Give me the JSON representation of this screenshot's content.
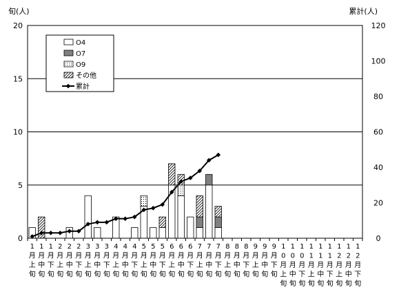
{
  "chart_data": {
    "type": "bar",
    "stacked": true,
    "left_axis_label": "旬(人)",
    "right_axis_label": "累計(人)",
    "ylim": [
      0,
      20
    ],
    "y_ticks": [
      "0",
      "5",
      "10",
      "15",
      "20"
    ],
    "y2lim": [
      0,
      120
    ],
    "y2_ticks": [
      "0",
      "20",
      "40",
      "60",
      "80",
      "100",
      "120"
    ],
    "grid": "horizontal",
    "legend_position": "top-left",
    "categories": [
      [
        "1",
        "月",
        "上",
        "旬"
      ],
      [
        "1",
        "月",
        "中",
        "旬"
      ],
      [
        "1",
        "月",
        "下",
        "旬"
      ],
      [
        "2",
        "月",
        "上",
        "旬"
      ],
      [
        "2",
        "月",
        "中",
        "旬"
      ],
      [
        "2",
        "月",
        "下",
        "旬"
      ],
      [
        "3",
        "月",
        "上",
        "旬"
      ],
      [
        "3",
        "月",
        "中",
        "旬"
      ],
      [
        "3",
        "月",
        "下",
        "旬"
      ],
      [
        "4",
        "月",
        "上",
        "旬"
      ],
      [
        "4",
        "月",
        "中",
        "旬"
      ],
      [
        "4",
        "月",
        "下",
        "旬"
      ],
      [
        "5",
        "月",
        "上",
        "旬"
      ],
      [
        "5",
        "月",
        "中",
        "旬"
      ],
      [
        "5",
        "月",
        "下",
        "旬"
      ],
      [
        "6",
        "月",
        "上",
        "旬"
      ],
      [
        "6",
        "月",
        "中",
        "旬"
      ],
      [
        "6",
        "月",
        "下",
        "旬"
      ],
      [
        "7",
        "月",
        "上",
        "旬"
      ],
      [
        "7",
        "月",
        "中",
        "旬"
      ],
      [
        "7",
        "月",
        "下",
        "旬"
      ],
      [
        "8",
        "月",
        "上",
        "旬"
      ],
      [
        "8",
        "月",
        "中",
        "旬"
      ],
      [
        "8",
        "月",
        "下",
        "旬"
      ],
      [
        "9",
        "月",
        "上",
        "旬"
      ],
      [
        "9",
        "月",
        "中",
        "旬"
      ],
      [
        "9",
        "月",
        "下",
        "旬"
      ],
      [
        "1",
        "0",
        "月",
        "上",
        "旬"
      ],
      [
        "1",
        "0",
        "月",
        "中",
        "旬"
      ],
      [
        "1",
        "0",
        "月",
        "下",
        "旬"
      ],
      [
        "1",
        "1",
        "月",
        "上",
        "旬"
      ],
      [
        "1",
        "1",
        "月",
        "中",
        "旬"
      ],
      [
        "1",
        "1",
        "月",
        "下",
        "旬"
      ],
      [
        "1",
        "2",
        "月",
        "上",
        "旬"
      ],
      [
        "1",
        "2",
        "月",
        "中",
        "旬"
      ],
      [
        "1",
        "2",
        "月",
        "下",
        "旬"
      ]
    ],
    "series": [
      {
        "name": "O4",
        "pattern": "white",
        "values": [
          1,
          0,
          0,
          0,
          1,
          0,
          4,
          1,
          0,
          2,
          0,
          1,
          3,
          1,
          1,
          5,
          4,
          2,
          1,
          5,
          1,
          0,
          0,
          0,
          0,
          0,
          0,
          0,
          0,
          0,
          0,
          0,
          0,
          0,
          0,
          0
        ]
      },
      {
        "name": "O7",
        "pattern": "gray",
        "values": [
          0,
          0,
          0,
          0,
          0,
          0,
          0,
          0,
          0,
          0,
          0,
          0,
          0,
          0,
          0,
          0,
          0,
          0,
          1,
          1,
          1,
          0,
          0,
          0,
          0,
          0,
          0,
          0,
          0,
          0,
          0,
          0,
          0,
          0,
          0,
          0
        ]
      },
      {
        "name": "O9",
        "pattern": "dotted",
        "values": [
          0,
          0,
          0,
          0,
          0,
          0,
          0,
          0,
          0,
          0,
          0,
          0,
          1,
          0,
          0,
          0,
          1,
          0,
          0,
          0,
          0,
          0,
          0,
          0,
          0,
          0,
          0,
          0,
          0,
          0,
          0,
          0,
          0,
          0,
          0,
          0
        ]
      },
      {
        "name": "その他",
        "pattern": "hatched",
        "values": [
          0,
          2,
          0,
          0,
          0,
          0,
          0,
          0,
          0,
          0,
          0,
          0,
          0,
          0,
          1,
          2,
          1,
          0,
          2,
          0,
          1,
          0,
          0,
          0,
          0,
          0,
          0,
          0,
          0,
          0,
          0,
          0,
          0,
          0,
          0,
          0
        ]
      }
    ],
    "line": {
      "name": "累計",
      "axis": "right",
      "values": [
        1,
        3,
        3,
        3,
        4,
        4,
        8,
        9,
        9,
        11,
        11,
        12,
        16,
        17,
        19,
        26,
        32,
        34,
        38,
        44,
        47
      ]
    }
  }
}
